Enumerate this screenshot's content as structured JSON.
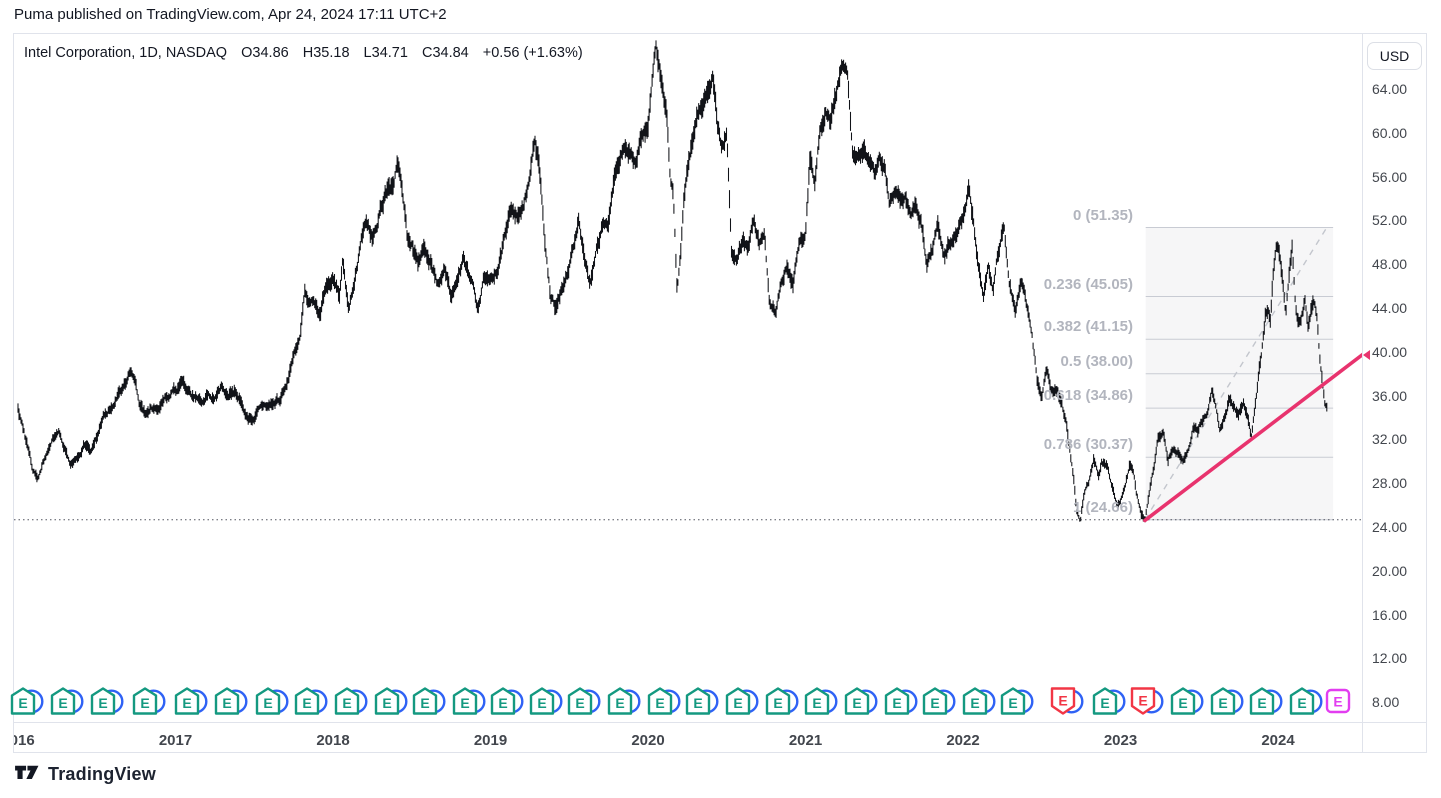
{
  "attribution": "Puma published on TradingView.com, Apr 24, 2024 17:11 UTC+2",
  "header": {
    "symbol_line": "Intel Corporation, 1D, NASDAQ",
    "open_label": "O",
    "open": "34.86",
    "high_label": "H",
    "high": "35.18",
    "low_label": "L",
    "low": "34.71",
    "close_label": "C",
    "close": "34.84",
    "change": "+0.56 (+1.63%)"
  },
  "price_axis": {
    "currency_button": "USD",
    "max": 64,
    "min": 8,
    "step": 4,
    "ticks": [
      "64.00",
      "60.00",
      "56.00",
      "52.00",
      "48.00",
      "44.00",
      "40.00",
      "36.00",
      "32.00",
      "28.00",
      "24.00",
      "20.00",
      "16.00",
      "12.00",
      "8.00"
    ]
  },
  "time_axis": {
    "years": [
      {
        "label": "2016",
        "t": 0
      },
      {
        "label": "2017",
        "t": 1
      },
      {
        "label": "2018",
        "t": 2
      },
      {
        "label": "2019",
        "t": 3
      },
      {
        "label": "2020",
        "t": 4
      },
      {
        "label": "2021",
        "t": 5
      },
      {
        "label": "2022",
        "t": 6
      },
      {
        "label": "2023",
        "t": 7
      },
      {
        "label": "2024",
        "t": 8
      }
    ]
  },
  "fibonacci": {
    "box_t": [
      7.16,
      8.35
    ],
    "anchor_low": {
      "t": 7.155,
      "price": 24.66
    },
    "anchor_high": {
      "t": 8.31,
      "price": 51.35
    },
    "levels": [
      {
        "label": "0 (51.35)",
        "ratio": 0,
        "price": 51.35
      },
      {
        "label": "0.236 (45.05)",
        "ratio": 0.236,
        "price": 45.05
      },
      {
        "label": "0.382 (41.15)",
        "ratio": 0.382,
        "price": 41.15
      },
      {
        "label": "0.5 (38.00)",
        "ratio": 0.5,
        "price": 38.0
      },
      {
        "label": "0.618 (34.86)",
        "ratio": 0.618,
        "price": 34.86
      },
      {
        "label": "0.786 (30.37)",
        "ratio": 0.786,
        "price": 30.37
      },
      {
        "label": "1 (24.66)",
        "ratio": 1,
        "price": 24.66
      }
    ]
  },
  "trendline": {
    "start": {
      "t": 7.155,
      "price": 24.6
    },
    "end": {
      "t": 8.56,
      "price": 40.0
    }
  },
  "dotted_level_price": 24.66,
  "earnings": {
    "letter": "E",
    "markers": [
      {
        "t": 0.038,
        "result": "beat"
      },
      {
        "t": 0.292,
        "result": "beat"
      },
      {
        "t": 0.546,
        "result": "beat"
      },
      {
        "t": 0.813,
        "result": "beat"
      },
      {
        "t": 1.079,
        "result": "beat"
      },
      {
        "t": 1.333,
        "result": "beat"
      },
      {
        "t": 1.594,
        "result": "beat"
      },
      {
        "t": 1.841,
        "result": "beat"
      },
      {
        "t": 2.095,
        "result": "beat"
      },
      {
        "t": 2.349,
        "result": "beat"
      },
      {
        "t": 2.59,
        "result": "beat"
      },
      {
        "t": 2.844,
        "result": "beat"
      },
      {
        "t": 3.086,
        "result": "beat"
      },
      {
        "t": 3.333,
        "result": "beat"
      },
      {
        "t": 3.575,
        "result": "beat"
      },
      {
        "t": 3.829,
        "result": "beat"
      },
      {
        "t": 4.083,
        "result": "beat"
      },
      {
        "t": 4.324,
        "result": "beat"
      },
      {
        "t": 4.578,
        "result": "beat"
      },
      {
        "t": 4.832,
        "result": "beat"
      },
      {
        "t": 5.079,
        "result": "beat"
      },
      {
        "t": 5.333,
        "result": "beat"
      },
      {
        "t": 5.587,
        "result": "beat"
      },
      {
        "t": 5.829,
        "result": "beat"
      },
      {
        "t": 6.083,
        "result": "beat"
      },
      {
        "t": 6.324,
        "result": "beat"
      },
      {
        "t": 6.641,
        "result": "miss"
      },
      {
        "t": 6.908,
        "result": "beat"
      },
      {
        "t": 7.149,
        "result": "miss"
      },
      {
        "t": 7.403,
        "result": "beat"
      },
      {
        "t": 7.657,
        "result": "beat"
      },
      {
        "t": 7.905,
        "result": "beat"
      },
      {
        "t": 8.159,
        "result": "beat"
      },
      {
        "t": 8.381,
        "result": "upcoming"
      }
    ]
  },
  "branding": {
    "logo_text": "TradingView"
  },
  "colors": {
    "text_dark": "#131722",
    "axis_text": "#42464d",
    "frame_border": "#e0e3eb",
    "bars": "#111318",
    "fib_label": "#b2b5be",
    "fib_line": "#c8cbd3",
    "fib_fill": "rgba(150,153,163,0.09)",
    "fib_dashed": "#c3c6cd",
    "dotted_line": "#50535e",
    "trendline_pink": "#e8336e",
    "earnings_teal": "#149980",
    "earnings_red": "#f23645",
    "earnings_upcoming": "#e23df0",
    "dividend_blue": "#2f62f5"
  },
  "chart_data": {
    "type": "bar",
    "title": "Intel Corporation, 1D, NASDAQ",
    "symbol": "Intel Corporation",
    "timeframe": "1D",
    "exchange": "NASDAQ",
    "last_bar": {
      "open": 34.86,
      "high": 35.18,
      "low": 34.71,
      "close": 34.84,
      "change": 0.56,
      "change_pct": 1.63
    },
    "x_unit": "years_since_2016_start",
    "t_end": 8.31,
    "ylim": [
      8,
      64
    ],
    "ytick_step": 4,
    "grid": false,
    "keyframes": [
      [
        0.0,
        34.8
      ],
      [
        0.03,
        33.0
      ],
      [
        0.09,
        29.3
      ],
      [
        0.13,
        28.2
      ],
      [
        0.17,
        30.0
      ],
      [
        0.22,
        31.8
      ],
      [
        0.26,
        32.6
      ],
      [
        0.3,
        31.0
      ],
      [
        0.33,
        30.0
      ],
      [
        0.38,
        30.6
      ],
      [
        0.42,
        31.8
      ],
      [
        0.46,
        31.4
      ],
      [
        0.5,
        32.8
      ],
      [
        0.55,
        34.6
      ],
      [
        0.6,
        35.6
      ],
      [
        0.63,
        36.1
      ],
      [
        0.67,
        36.6
      ],
      [
        0.71,
        37.9
      ],
      [
        0.74,
        37.2
      ],
      [
        0.77,
        34.9
      ],
      [
        0.81,
        34.3
      ],
      [
        0.84,
        35.1
      ],
      [
        0.88,
        34.6
      ],
      [
        0.92,
        35.6
      ],
      [
        0.96,
        36.3
      ],
      [
        1.0,
        36.5
      ],
      [
        1.04,
        37.3
      ],
      [
        1.08,
        36.5
      ],
      [
        1.13,
        35.8
      ],
      [
        1.17,
        35.2
      ],
      [
        1.21,
        36.0
      ],
      [
        1.25,
        35.6
      ],
      [
        1.29,
        36.5
      ],
      [
        1.33,
        36.0
      ],
      [
        1.38,
        36.2
      ],
      [
        1.42,
        35.2
      ],
      [
        1.46,
        33.6
      ],
      [
        1.5,
        33.9
      ],
      [
        1.54,
        34.6
      ],
      [
        1.58,
        34.9
      ],
      [
        1.63,
        34.9
      ],
      [
        1.67,
        35.6
      ],
      [
        1.71,
        37.2
      ],
      [
        1.75,
        39.8
      ],
      [
        1.79,
        41.5
      ],
      [
        1.82,
        45.5
      ],
      [
        1.85,
        44.5
      ],
      [
        1.88,
        44.9
      ],
      [
        1.92,
        43.5
      ],
      [
        1.96,
        46.4
      ],
      [
        2.0,
        46.8
      ],
      [
        2.04,
        45.0
      ],
      [
        2.06,
        48.6
      ],
      [
        2.1,
        44.0
      ],
      [
        2.13,
        46.2
      ],
      [
        2.17,
        49.5
      ],
      [
        2.21,
        52.2
      ],
      [
        2.25,
        51.0
      ],
      [
        2.29,
        52.5
      ],
      [
        2.33,
        54.5
      ],
      [
        2.38,
        55.2
      ],
      [
        2.41,
        57.4
      ],
      [
        2.44,
        55.0
      ],
      [
        2.47,
        50.5
      ],
      [
        2.5,
        49.8
      ],
      [
        2.54,
        48.2
      ],
      [
        2.58,
        49.6
      ],
      [
        2.63,
        48.0
      ],
      [
        2.67,
        46.2
      ],
      [
        2.71,
        47.5
      ],
      [
        2.75,
        44.8
      ],
      [
        2.79,
        46.9
      ],
      [
        2.83,
        49.0
      ],
      [
        2.88,
        47.0
      ],
      [
        2.92,
        44.0
      ],
      [
        2.96,
        46.8
      ],
      [
        3.0,
        46.5
      ],
      [
        3.04,
        47.2
      ],
      [
        3.08,
        49.5
      ],
      [
        3.13,
        53.2
      ],
      [
        3.17,
        52.5
      ],
      [
        3.21,
        53.9
      ],
      [
        3.25,
        55.8
      ],
      [
        3.28,
        58.7
      ],
      [
        3.31,
        56.5
      ],
      [
        3.34,
        51.0
      ],
      [
        3.38,
        45.3
      ],
      [
        3.42,
        44.2
      ],
      [
        3.46,
        46.0
      ],
      [
        3.5,
        47.8
      ],
      [
        3.53,
        50.0
      ],
      [
        3.56,
        52.2
      ],
      [
        3.6,
        48.0
      ],
      [
        3.63,
        46.3
      ],
      [
        3.67,
        49.0
      ],
      [
        3.71,
        51.4
      ],
      [
        3.75,
        51.8
      ],
      [
        3.79,
        56.3
      ],
      [
        3.83,
        57.8
      ],
      [
        3.88,
        58.2
      ],
      [
        3.92,
        57.2
      ],
      [
        3.96,
        59.6
      ],
      [
        4.0,
        60.0
      ],
      [
        4.03,
        66.5
      ],
      [
        4.05,
        69.0
      ],
      [
        4.07,
        67.0
      ],
      [
        4.09,
        64.5
      ],
      [
        4.12,
        62.0
      ],
      [
        4.14,
        56.5
      ],
      [
        4.16,
        54.5
      ],
      [
        4.185,
        45.5
      ],
      [
        4.21,
        49.0
      ],
      [
        4.23,
        54.0
      ],
      [
        4.26,
        57.0
      ],
      [
        4.29,
        59.3
      ],
      [
        4.33,
        61.5
      ],
      [
        4.37,
        62.8
      ],
      [
        4.41,
        64.8
      ],
      [
        4.44,
        60.0
      ],
      [
        4.47,
        58.5
      ],
      [
        4.5,
        59.8
      ],
      [
        4.53,
        48.6
      ],
      [
        4.56,
        48.0
      ],
      [
        4.6,
        49.8
      ],
      [
        4.63,
        49.3
      ],
      [
        4.67,
        52.0
      ],
      [
        4.71,
        50.0
      ],
      [
        4.74,
        51.8
      ],
      [
        4.77,
        44.9
      ],
      [
        4.81,
        44.3
      ],
      [
        4.84,
        46.5
      ],
      [
        4.88,
        48.1
      ],
      [
        4.92,
        46.5
      ],
      [
        4.96,
        49.8
      ],
      [
        5.0,
        50.0
      ],
      [
        5.03,
        57.5
      ],
      [
        5.06,
        55.0
      ],
      [
        5.09,
        59.5
      ],
      [
        5.13,
        61.8
      ],
      [
        5.16,
        60.5
      ],
      [
        5.2,
        63.5
      ],
      [
        5.24,
        66.6
      ],
      [
        5.27,
        65.0
      ],
      [
        5.3,
        57.6
      ],
      [
        5.33,
        57.0
      ],
      [
        5.37,
        58.0
      ],
      [
        5.41,
        57.5
      ],
      [
        5.44,
        56.0
      ],
      [
        5.47,
        57.3
      ],
      [
        5.5,
        56.5
      ],
      [
        5.53,
        53.5
      ],
      [
        5.57,
        54.5
      ],
      [
        5.6,
        53.8
      ],
      [
        5.63,
        54.2
      ],
      [
        5.67,
        53.5
      ],
      [
        5.7,
        54.8
      ],
      [
        5.73,
        53.0
      ],
      [
        5.77,
        48.8
      ],
      [
        5.8,
        49.5
      ],
      [
        5.84,
        51.5
      ],
      [
        5.88,
        49.2
      ],
      [
        5.92,
        50.8
      ],
      [
        5.96,
        51.5
      ],
      [
        6.0,
        52.5
      ],
      [
        6.04,
        55.0
      ],
      [
        6.07,
        51.5
      ],
      [
        6.1,
        48.0
      ],
      [
        6.13,
        45.0
      ],
      [
        6.16,
        47.5
      ],
      [
        6.19,
        45.2
      ],
      [
        6.22,
        48.5
      ],
      [
        6.26,
        51.5
      ],
      [
        6.29,
        47.0
      ],
      [
        6.33,
        43.8
      ],
      [
        6.37,
        46.5
      ],
      [
        6.4,
        44.5
      ],
      [
        6.44,
        41.0
      ],
      [
        6.47,
        37.5
      ],
      [
        6.5,
        36.2
      ],
      [
        6.53,
        38.8
      ],
      [
        6.56,
        37.0
      ],
      [
        6.6,
        36.5
      ],
      [
        6.63,
        35.0
      ],
      [
        6.66,
        33.2
      ],
      [
        6.7,
        29.0
      ],
      [
        6.72,
        25.8
      ],
      [
        6.745,
        24.8
      ],
      [
        6.77,
        27.5
      ],
      [
        6.8,
        28.3
      ],
      [
        6.83,
        30.3
      ],
      [
        6.86,
        28.9
      ],
      [
        6.88,
        30.1
      ],
      [
        6.92,
        29.8
      ],
      [
        6.94,
        28.0
      ],
      [
        6.96,
        26.8
      ],
      [
        6.98,
        26.2
      ],
      [
        7.0,
        26.5
      ],
      [
        7.03,
        28.2
      ],
      [
        7.06,
        29.8
      ],
      [
        7.08,
        29.5
      ],
      [
        7.1,
        27.5
      ],
      [
        7.13,
        25.5
      ],
      [
        7.155,
        24.8
      ],
      [
        7.18,
        27.0
      ],
      [
        7.21,
        29.2
      ],
      [
        7.24,
        32.2
      ],
      [
        7.27,
        32.8
      ],
      [
        7.3,
        29.9
      ],
      [
        7.33,
        31.2
      ],
      [
        7.36,
        30.8
      ],
      [
        7.4,
        30.0
      ],
      [
        7.43,
        31.5
      ],
      [
        7.46,
        33.2
      ],
      [
        7.49,
        32.5
      ],
      [
        7.52,
        33.8
      ],
      [
        7.55,
        34.5
      ],
      [
        7.58,
        36.6
      ],
      [
        7.61,
        34.8
      ],
      [
        7.63,
        33.0
      ],
      [
        7.66,
        34.4
      ],
      [
        7.69,
        36.0
      ],
      [
        7.72,
        35.3
      ],
      [
        7.75,
        34.2
      ],
      [
        7.78,
        35.8
      ],
      [
        7.81,
        34.6
      ],
      [
        7.83,
        32.4
      ],
      [
        7.86,
        35.8
      ],
      [
        7.88,
        38.5
      ],
      [
        7.9,
        40.5
      ],
      [
        7.92,
        43.5
      ],
      [
        7.94,
        44.5
      ],
      [
        7.95,
        42.8
      ],
      [
        7.97,
        47.5
      ],
      [
        7.99,
        50.5
      ],
      [
        8.01,
        49.5
      ],
      [
        8.03,
        47.0
      ],
      [
        8.05,
        44.2
      ],
      [
        8.07,
        47.3
      ],
      [
        8.09,
        49.6
      ],
      [
        8.11,
        44.0
      ],
      [
        8.13,
        42.8
      ],
      [
        8.15,
        43.5
      ],
      [
        8.17,
        44.8
      ],
      [
        8.19,
        42.3
      ],
      [
        8.21,
        43.8
      ],
      [
        8.23,
        44.4
      ],
      [
        8.25,
        42.5
      ],
      [
        8.27,
        38.5
      ],
      [
        8.29,
        36.0
      ],
      [
        8.3,
        34.9
      ],
      [
        8.31,
        34.84
      ]
    ]
  }
}
